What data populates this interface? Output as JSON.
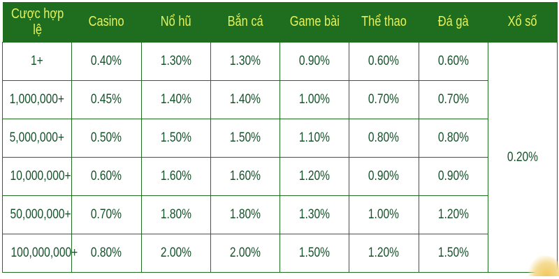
{
  "table": {
    "headers": [
      "Cược hợp lệ",
      "Casino",
      "Nổ hũ",
      "Bắn cá",
      "Game bài",
      "Thể thao",
      "Đá gà",
      "Xổ số"
    ],
    "rows": [
      [
        "1+",
        "0.40%",
        "1.30%",
        "1.30%",
        "0.90%",
        "0.60%",
        "0.60%"
      ],
      [
        "1,000,000+",
        "0.45%",
        "1.40%",
        "1.40%",
        "1.00%",
        "0.70%",
        "0.70%"
      ],
      [
        "5,000,000+",
        "0.50%",
        "1.50%",
        "1.50%",
        "1.10%",
        "0.80%",
        "0.80%"
      ],
      [
        "10,000,000+",
        "0.60%",
        "1.60%",
        "1.60%",
        "1.20%",
        "0.90%",
        "0.90%"
      ],
      [
        "50,000,000+",
        "0.70%",
        "1.80%",
        "1.80%",
        "1.30%",
        "1.00%",
        "1.20%"
      ],
      [
        "100,000,000+",
        "0.80%",
        "2.00%",
        "2.00%",
        "1.50%",
        "1.20%",
        "1.50%"
      ]
    ],
    "xo_so_merged": "0.20%"
  },
  "colors": {
    "header_bg": "#1f6d1f",
    "header_text": "#e6f25a",
    "cell_text": "#15532a"
  }
}
